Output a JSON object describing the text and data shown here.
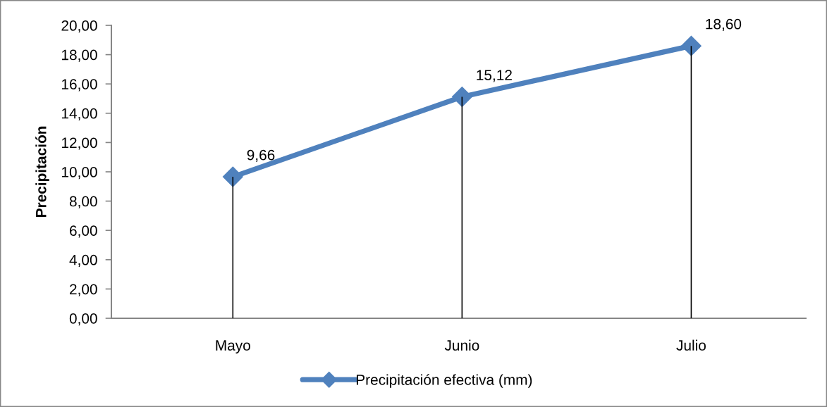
{
  "chart_data": {
    "type": "line",
    "ylabel": "Precipitación",
    "categories": [
      "Mayo",
      "Junio",
      "Julio"
    ],
    "series": [
      {
        "type": "bar",
        "color": "#000000",
        "values": [
          9.66,
          15.12,
          18.6
        ]
      },
      {
        "name": "Precipitación efectiva (mm)",
        "color": "#4f81bd",
        "values": [
          9.66,
          15.12,
          18.6
        ],
        "value_labels": [
          "9,66",
          "15,12",
          "18,60"
        ],
        "marker": "diamond",
        "line_style": "solid"
      }
    ],
    "ylim": [
      0,
      20
    ],
    "yticks": [
      {
        "value": 0,
        "label": "0,00"
      },
      {
        "value": 2,
        "label": "2,00"
      },
      {
        "value": 4,
        "label": "4,00"
      },
      {
        "value": 6,
        "label": "6,00"
      },
      {
        "value": 8,
        "label": "8,00"
      },
      {
        "value": 10,
        "label": "10,00"
      },
      {
        "value": 12,
        "label": "12,00"
      },
      {
        "value": 14,
        "label": "14,00"
      },
      {
        "value": 16,
        "label": "16,00"
      },
      {
        "value": 18,
        "label": "18,00"
      },
      {
        "value": 20,
        "label": "20,00"
      }
    ],
    "grid": false,
    "legend": "bottom"
  }
}
